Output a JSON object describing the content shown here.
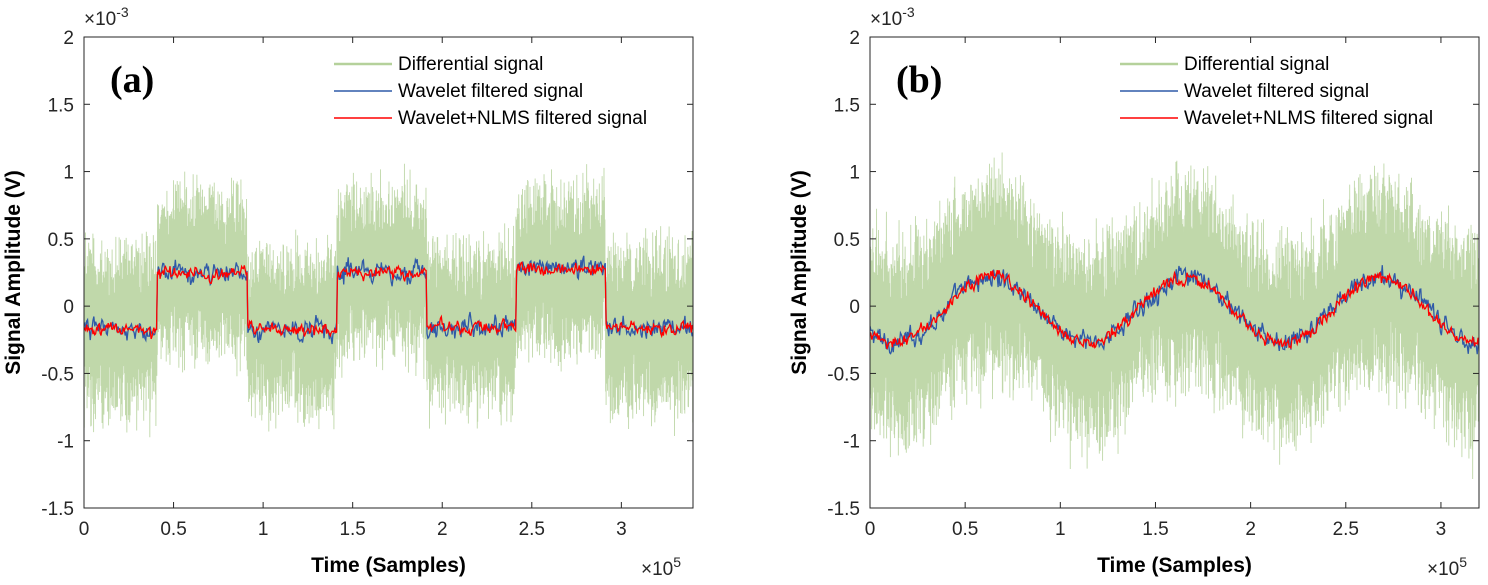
{
  "chart_data": [
    {
      "panel_label": "(a)",
      "type": "line",
      "xlabel": "Time (Samples)",
      "ylabel": "Signal Amplitude (V)",
      "xlim": [
        0,
        3.4
      ],
      "ylim": [
        -1.5,
        2
      ],
      "x_multiplier": "×10",
      "x_multiplier_exp": "5",
      "y_multiplier": "×10",
      "y_multiplier_exp": "-3",
      "xticks": [
        0,
        0.5,
        1,
        1.5,
        2,
        2.5,
        3
      ],
      "xtick_labels": [
        "0",
        "0.5",
        "1",
        "1.5",
        "2",
        "2.5",
        "3"
      ],
      "yticks": [
        -1.5,
        -1,
        -0.5,
        0,
        0.5,
        1,
        1.5,
        2
      ],
      "ytick_labels": [
        "-1.5",
        "-1",
        "-0.5",
        "0",
        "0.5",
        "1",
        "1.5",
        "2"
      ],
      "legend": {
        "location": "top-right",
        "entries": [
          "Differential signal",
          "Wavelet filtered signal",
          "Wavelet+NLMS filtered signal"
        ]
      },
      "series": [
        {
          "name": "Differential signal",
          "color": "#b5d19b",
          "description": "noisy signal, amplitude spread about ±0.75e-3 V around the underlying square wave"
        },
        {
          "name": "Wavelet filtered signal",
          "color": "#2f5aa8",
          "underlying": "square wave"
        },
        {
          "name": "Wavelet+NLMS filtered signal",
          "color": "#ff0000",
          "underlying": "square wave"
        }
      ],
      "waveform": {
        "shape": "square",
        "segments": [
          {
            "x_start": 0,
            "x_end": 0.41,
            "level": -0.18
          },
          {
            "x_start": 0.41,
            "x_end": 0.91,
            "level": 0.24
          },
          {
            "x_start": 0.91,
            "x_end": 1.41,
            "level": -0.18
          },
          {
            "x_start": 1.41,
            "x_end": 1.91,
            "level": 0.25
          },
          {
            "x_start": 1.91,
            "x_end": 2.41,
            "level": -0.15
          },
          {
            "x_start": 2.41,
            "x_end": 2.91,
            "level": 0.28
          },
          {
            "x_start": 2.91,
            "x_end": 3.4,
            "level": -0.16
          }
        ]
      }
    },
    {
      "panel_label": "(b)",
      "type": "line",
      "xlabel": "Time (Samples)",
      "ylabel": "Signal Amplitude (V)",
      "xlim": [
        0,
        3.2
      ],
      "ylim": [
        -1.5,
        2
      ],
      "x_multiplier": "×10",
      "x_multiplier_exp": "5",
      "y_multiplier": "×10",
      "y_multiplier_exp": "-3",
      "xticks": [
        0,
        0.5,
        1,
        1.5,
        2,
        2.5,
        3
      ],
      "xtick_labels": [
        "0",
        "0.5",
        "1",
        "1.5",
        "2",
        "2.5",
        "3"
      ],
      "yticks": [
        -1.5,
        -1,
        -0.5,
        0,
        0.5,
        1,
        1.5,
        2
      ],
      "ytick_labels": [
        "-1.5",
        "-1",
        "-0.5",
        "0",
        "0.5",
        "1",
        "1.5",
        "2"
      ],
      "legend": {
        "location": "top-right",
        "entries": [
          "Differential signal",
          "Wavelet filtered signal",
          "Wavelet+NLMS filtered signal"
        ]
      },
      "series": [
        {
          "name": "Differential signal",
          "color": "#b5d19b",
          "description": "noisy signal, amplitude spread about ±0.75e-3 V around the underlying sine wave"
        },
        {
          "name": "Wavelet filtered signal",
          "color": "#2f5aa8",
          "underlying": "sine wave"
        },
        {
          "name": "Wavelet+NLMS filtered signal",
          "color": "#ff0000",
          "underlying": "sine wave"
        }
      ],
      "waveform": {
        "shape": "sine",
        "offset": -0.03,
        "amplitude": 0.24,
        "period": 1.02,
        "peaks_x": [
          0.64,
          1.66,
          2.7
        ],
        "troughs_x": [
          0.13,
          1.15,
          2.17
        ]
      }
    }
  ]
}
